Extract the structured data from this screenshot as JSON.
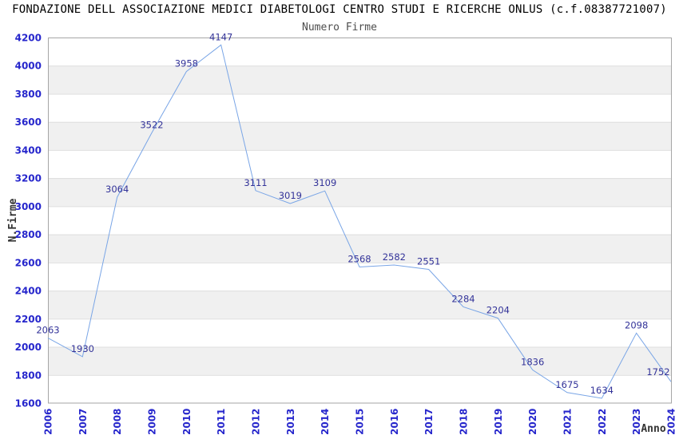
{
  "header": {
    "title": "FONDAZIONE DELL ASSOCIAZIONE MEDICI DIABETOLOGI CENTRO STUDI E RICERCHE ONLUS (c.f.08387721007)",
    "subtitle": "Numero Firme"
  },
  "chart_data": {
    "type": "line",
    "title": "Numero Firme",
    "xlabel": "Anno",
    "ylabel": "N.Firme",
    "x": [
      2006,
      2007,
      2008,
      2009,
      2010,
      2011,
      2012,
      2013,
      2014,
      2015,
      2016,
      2017,
      2018,
      2019,
      2020,
      2021,
      2022,
      2023,
      2024
    ],
    "values": [
      2063,
      1930,
      3064,
      3522,
      3958,
      4147,
      3111,
      3019,
      3109,
      2568,
      2582,
      2551,
      2284,
      2204,
      1836,
      1675,
      1634,
      2098,
      1752
    ],
    "ylim": [
      1600,
      4200
    ],
    "ytick_step": 200,
    "grid": "horizontal-bands",
    "legend_position": "none",
    "colors": {
      "line": "#79a5e6",
      "point_label": "#333399",
      "tick_label": "#2626cc",
      "band_gray": "#f0f0f0",
      "gridline": "#dedede",
      "plot_border": "#a6a6a6",
      "axis_title": "#333333",
      "title": "#000000",
      "subtitle": "#4d4d4d"
    }
  }
}
